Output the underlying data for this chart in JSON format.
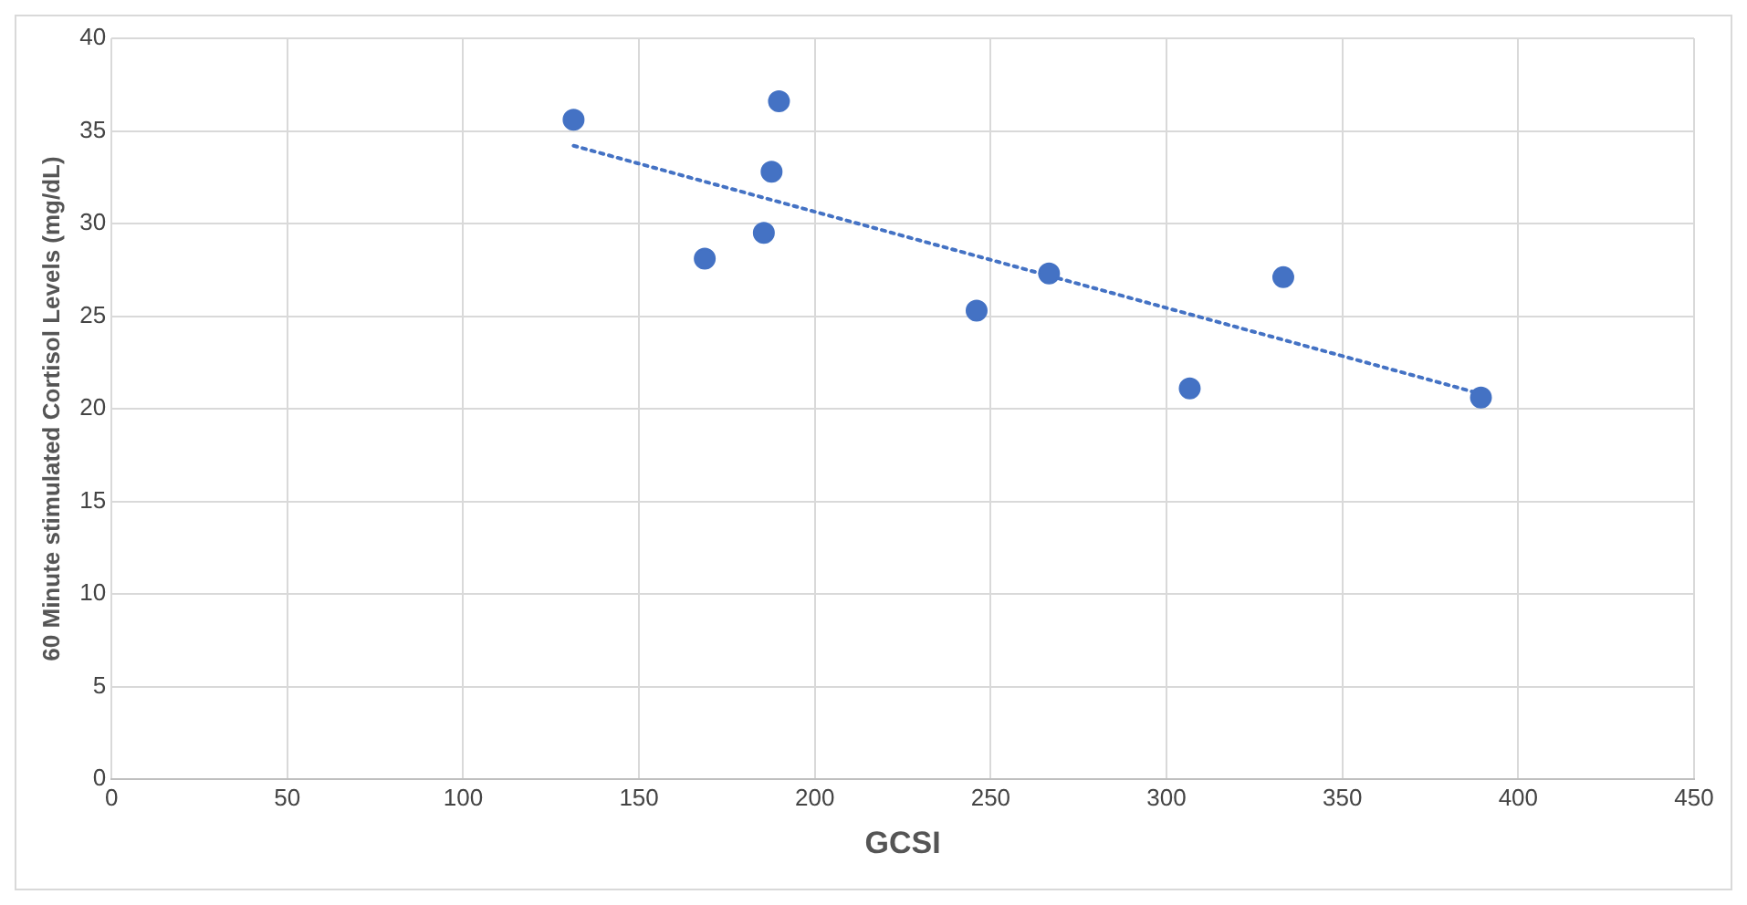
{
  "chart_data": {
    "type": "scatter",
    "xlabel": "GCSI",
    "ylabel": "60 Minute stimulated Cortisol Levels (mg/dL)",
    "xlim": [
      0,
      450
    ],
    "xticks": [
      0,
      50,
      100,
      150,
      200,
      250,
      300,
      350,
      400,
      450
    ],
    "ylim": [
      0,
      40
    ],
    "yticks": [
      0,
      5,
      10,
      15,
      20,
      25,
      30,
      35,
      40
    ],
    "grid": true,
    "legend": false,
    "series": [
      {
        "color": "#4472c4",
        "marker": "circle",
        "x": [
          131.4,
          189.8,
          187.7,
          168.7,
          185.5,
          246,
          266.6,
          306.6,
          333.2,
          389.4
        ],
        "values": [
          35.6,
          36.6,
          32.8,
          28.1,
          29.5,
          25.3,
          27.3,
          21.1,
          27.1,
          20.6
        ]
      },
      {
        "type": "line",
        "color": "#4472c4",
        "line_style": "dotted",
        "x": [
          131.4,
          389.4
        ],
        "values": [
          34.2,
          20.8
        ]
      }
    ]
  }
}
